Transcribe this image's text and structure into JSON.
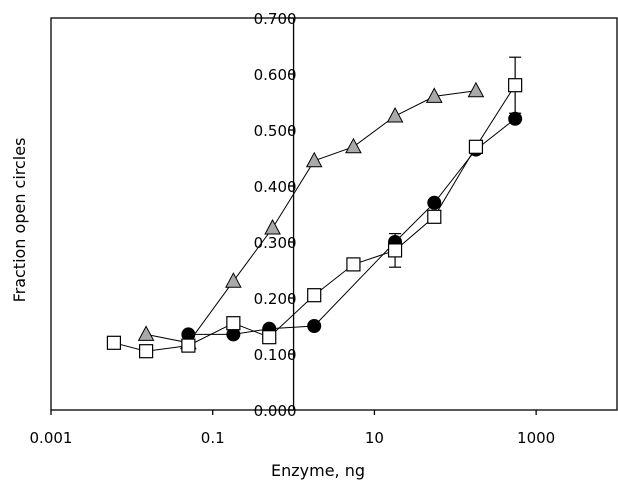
{
  "chart_data": {
    "type": "scatter",
    "title": "",
    "xlabel": "Enzyme, ng",
    "ylabel": "Fraction open circles",
    "x_scale": "log",
    "xlim": [
      0.001,
      10000
    ],
    "ylim": [
      0.0,
      0.7
    ],
    "x_ticks": [
      0.001,
      0.1,
      10,
      1000
    ],
    "x_tick_labels": [
      "0.001",
      "0.1",
      "10",
      "1000"
    ],
    "y_ticks": [
      0.0,
      0.1,
      0.2,
      0.3,
      0.4,
      0.5,
      0.6,
      0.7
    ],
    "y_tick_labels": [
      "0.000",
      "0.100",
      "0.200",
      "0.300",
      "0.400",
      "0.500",
      "0.600",
      "0.700"
    ],
    "y_axis_crosses_x_at": 1,
    "grid": false,
    "legend": "none",
    "series": [
      {
        "marker": "triangle",
        "color": "#a9a9a9",
        "x": [
          0.015,
          0.05,
          0.18,
          0.55,
          1.8,
          5.5,
          18,
          55,
          180
        ],
        "y": [
          0.135,
          0.12,
          0.23,
          0.325,
          0.445,
          0.47,
          0.525,
          0.56,
          0.57
        ]
      },
      {
        "marker": "circle-filled",
        "color": "#000000",
        "x": [
          0.05,
          0.18,
          0.5,
          1.8,
          18,
          55,
          180,
          550
        ],
        "y": [
          0.135,
          0.135,
          0.145,
          0.15,
          0.3,
          0.37,
          0.465,
          0.52
        ]
      },
      {
        "marker": "square-open",
        "color": "#ffffff",
        "x": [
          0.006,
          0.015,
          0.05,
          0.18,
          0.5,
          1.8,
          5.5,
          18,
          55,
          180,
          550
        ],
        "y": [
          0.12,
          0.105,
          0.115,
          0.155,
          0.13,
          0.205,
          0.26,
          0.285,
          0.345,
          0.47,
          0.58
        ],
        "error": [
          0,
          0,
          0,
          0,
          0,
          0,
          0,
          0.03,
          0,
          0,
          0.05
        ]
      }
    ]
  }
}
